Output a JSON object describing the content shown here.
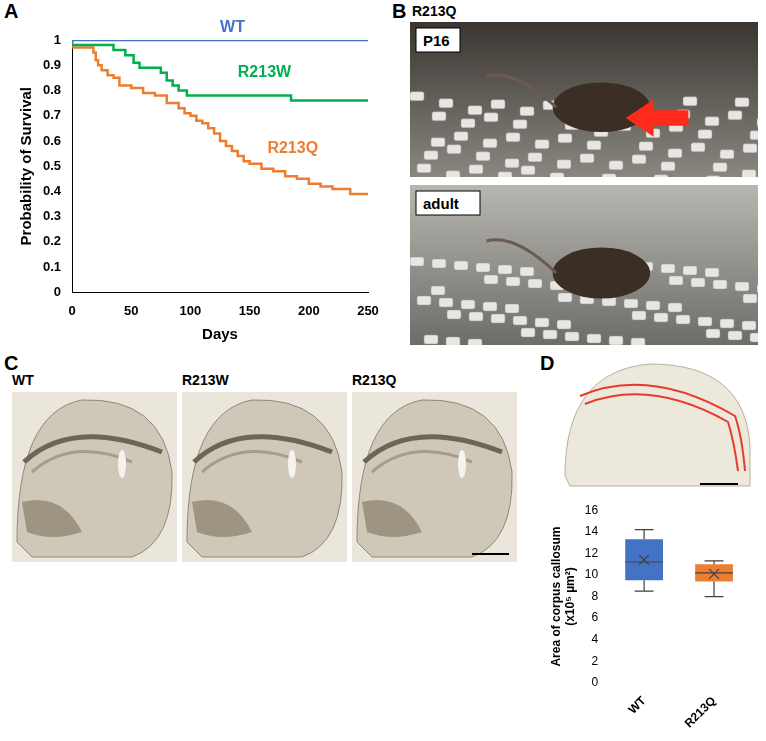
{
  "chart_data": [
    {
      "panel": "A",
      "type": "line",
      "line_style": "steps",
      "grid": false,
      "x_label": "Days",
      "y_label": "Probability of Survival",
      "xlim": [
        0,
        250
      ],
      "xticks": [
        0,
        50,
        100,
        150,
        200,
        250
      ],
      "ylim": [
        0,
        1
      ],
      "yticks": [
        0,
        0.1,
        0.2,
        0.3,
        0.4,
        0.5,
        0.6,
        0.7,
        0.8,
        0.9,
        1
      ],
      "series": [
        {
          "name": "WT",
          "color": "#4472c4",
          "x": [
            0,
            250
          ],
          "values": [
            1,
            1
          ]
        },
        {
          "name": "R213W",
          "color": "#00b050",
          "x": [
            0,
            35,
            45,
            52,
            57,
            75,
            80,
            85,
            90,
            97,
            185,
            200,
            250
          ],
          "values": [
            1,
            0.98,
            0.96,
            0.94,
            0.91,
            0.89,
            0.87,
            0.84,
            0.82,
            0.8,
            0.78,
            0.76,
            0.76
          ]
        },
        {
          "name": "R213Q",
          "color": "#ed7d31",
          "x": [
            0,
            18,
            20,
            22,
            25,
            30,
            35,
            40,
            50,
            60,
            70,
            80,
            90,
            95,
            100,
            105,
            110,
            115,
            120,
            125,
            130,
            135,
            140,
            145,
            150,
            160,
            170,
            180,
            190,
            200,
            210,
            220,
            235,
            245,
            250
          ],
          "values": [
            1,
            0.97,
            0.95,
            0.92,
            0.9,
            0.88,
            0.86,
            0.85,
            0.82,
            0.81,
            0.79,
            0.78,
            0.75,
            0.73,
            0.71,
            0.7,
            0.68,
            0.67,
            0.65,
            0.63,
            0.6,
            0.58,
            0.56,
            0.54,
            0.52,
            0.51,
            0.49,
            0.48,
            0.46,
            0.45,
            0.43,
            0.42,
            0.41,
            0.39,
            0.39
          ]
        }
      ]
    },
    {
      "panel": "D",
      "type": "box",
      "grid": false,
      "marker": "x",
      "y_label": "Area of corpus callosum (x10⁵ µm²)",
      "categories": [
        "WT",
        "R213Q"
      ],
      "colors": [
        "#4472c4",
        "#ed7d31"
      ],
      "ylim": [
        0,
        16
      ],
      "yticks": [
        0,
        2,
        4,
        6,
        8,
        10,
        12,
        14,
        16
      ],
      "min": [
        8.5,
        8.0
      ],
      "q1": [
        9.5,
        9.4
      ],
      "median": [
        11.2,
        10.2
      ],
      "q3": [
        13.3,
        11.0
      ],
      "max": [
        14.2,
        11.3
      ],
      "mean": [
        11.4,
        10.1
      ]
    }
  ],
  "images": [
    {
      "panel": "B",
      "title": "R213Q",
      "labels": [
        "P16",
        "adult"
      ]
    },
    {
      "panel": "C",
      "labels": [
        "WT",
        "R213W",
        "R213Q"
      ]
    }
  ]
}
